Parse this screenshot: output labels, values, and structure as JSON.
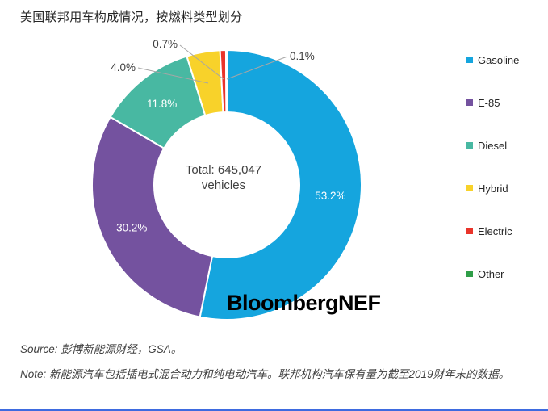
{
  "page": {
    "title": "美国联邦用车构成情况，按燃料类型划分",
    "watermark": "BloombergNEF",
    "source_label": "Source:",
    "source_text": "彭博新能源财经，GSA。",
    "note_label": "Note:",
    "note_text": "新能源汽车包括插电式混合动力和纯电动汽车。联邦机构汽车保有量为截至2019财年末的数据。"
  },
  "chart_data": {
    "type": "pie",
    "subtype": "donut",
    "title": "美国联邦用车构成情况，按燃料类型划分",
    "total_vehicles": 645047,
    "center_label": {
      "line1": "Total: 645,047",
      "line2": "vehicles"
    },
    "legend_position": "right",
    "start_angle_deg": 0,
    "direction": "clockwise",
    "slice_border_color": "#ffffff",
    "inside_label_color": "#ffffff",
    "outside_label_color": "#404040",
    "leader_line_color": "#a6a6a6",
    "slices": [
      {
        "label": "Gasoline",
        "value_pct": 53.2,
        "color": "#15A5DE",
        "label_placement": "inside"
      },
      {
        "label": "E-85",
        "value_pct": 30.2,
        "color": "#74529F",
        "label_placement": "inside"
      },
      {
        "label": "Diesel",
        "value_pct": 11.8,
        "color": "#48B8A2",
        "label_placement": "inside"
      },
      {
        "label": "Hybrid",
        "value_pct": 4.0,
        "color": "#F8D22A",
        "label_placement": "outside"
      },
      {
        "label": "Electric",
        "value_pct": 0.7,
        "color": "#E9342A",
        "label_placement": "outside"
      },
      {
        "label": "Other",
        "value_pct": 0.1,
        "color": "#2F9E48",
        "label_placement": "outside"
      }
    ]
  }
}
